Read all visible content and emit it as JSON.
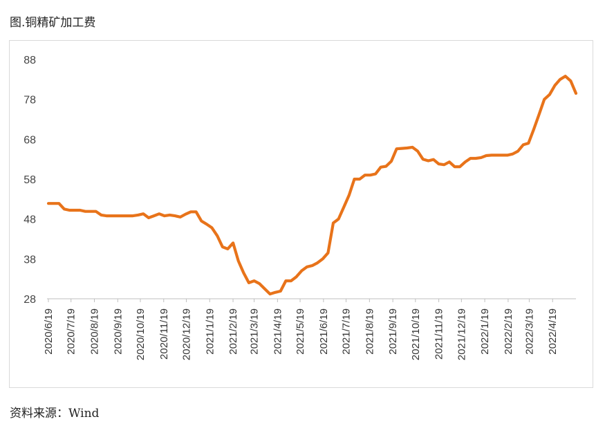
{
  "title": "图.铜精矿加工费",
  "source": "资料来源：Wind",
  "colors": {
    "line": "#E8731A",
    "axis": "#bfbfbf"
  },
  "chart_data": {
    "type": "line",
    "title": "图.铜精矿加工费",
    "xlabel": "",
    "ylabel": "",
    "ylim": [
      28,
      88
    ],
    "yticks": [
      28,
      38,
      48,
      58,
      68,
      78,
      88
    ],
    "grid": false,
    "legend": "none",
    "x_start": "2020-06-19",
    "x_interval": "weekly",
    "x_ticks": [
      "2020/6/19",
      "2020/7/19",
      "2020/8/19",
      "2020/9/19",
      "2020/10/19",
      "2020/11/19",
      "2020/12/19",
      "2021/1/19",
      "2021/2/19",
      "2021/3/19",
      "2021/4/19",
      "2021/5/19",
      "2021/6/19",
      "2021/7/19",
      "2021/8/19",
      "2021/9/19",
      "2021/10/19",
      "2021/11/19",
      "2021/12/19",
      "2022/1/19",
      "2022/2/19",
      "2022/3/19",
      "2022/4/19"
    ],
    "series": [
      {
        "values": [
          51.9,
          51.9,
          51.9,
          50.5,
          50.2,
          50.2,
          50.2,
          49.9,
          49.9,
          49.9,
          49.0,
          48.8,
          48.8,
          48.8,
          48.8,
          48.8,
          48.8,
          49.0,
          49.3,
          48.3,
          48.8,
          49.3,
          48.8,
          49.0,
          48.8,
          48.5,
          49.2,
          49.8,
          49.8,
          47.5,
          46.7,
          45.8,
          43.8,
          41.0,
          40.5,
          42.0,
          37.5,
          34.5,
          32.0,
          32.5,
          31.8,
          30.5,
          29.2,
          29.6,
          29.9,
          32.5,
          32.5,
          33.5,
          35.0,
          36.0,
          36.3,
          37.0,
          38.0,
          39.5,
          47.0,
          48.0,
          51.0,
          54.0,
          58.0,
          58.0,
          59.0,
          59.0,
          59.3,
          61.0,
          61.2,
          62.5,
          65.6,
          65.7,
          65.8,
          66.0,
          65.0,
          63.0,
          62.6,
          62.9,
          61.8,
          61.6,
          62.3,
          61.1,
          61.1,
          62.3,
          63.2,
          63.2,
          63.4,
          63.9,
          64.0,
          64.0,
          64.0,
          64.0,
          64.3,
          65.0,
          66.6,
          67.0,
          70.5,
          74.2,
          78.0,
          79.2,
          81.5,
          83.0,
          83.8,
          82.6,
          79.5
        ]
      }
    ]
  }
}
